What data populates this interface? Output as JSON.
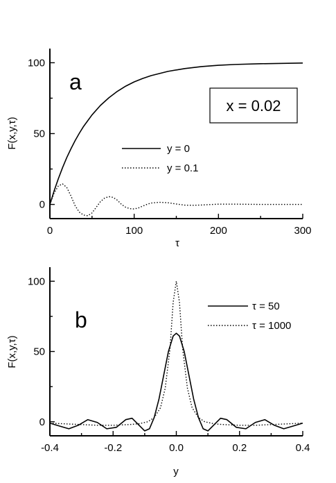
{
  "chart_data": [
    {
      "type": "line",
      "panel_label": "a",
      "xlabel": "τ",
      "ylabel": "F(x,y,τ)",
      "xlim": [
        0,
        300
      ],
      "ylim": [
        -10,
        110
      ],
      "xticks": [
        0,
        100,
        200,
        300
      ],
      "yticks": [
        0,
        50,
        100
      ],
      "grid": false,
      "legend_position": "center-right",
      "annotation": "x = 0.02",
      "series": [
        {
          "name": "y = 0",
          "style": "solid",
          "x": [
            0,
            5,
            10,
            15,
            20,
            25,
            30,
            35,
            40,
            50,
            60,
            70,
            80,
            90,
            100,
            110,
            120,
            140,
            160,
            180,
            200,
            220,
            250,
            300
          ],
          "y": [
            0,
            9.5,
            18.1,
            25.9,
            33.0,
            39.3,
            45.1,
            50.3,
            55.1,
            63.2,
            69.9,
            75.3,
            79.8,
            83.5,
            86.5,
            88.9,
            90.9,
            93.9,
            95.9,
            97.3,
            98.2,
            98.8,
            99.3,
            99.8
          ]
        },
        {
          "name": "y = 0.1",
          "style": "dotted",
          "x": [
            0,
            5,
            10,
            15,
            20,
            25,
            30,
            35,
            40,
            45,
            50,
            55,
            60,
            65,
            70,
            75,
            80,
            85,
            90,
            95,
            100,
            105,
            110,
            115,
            120,
            130,
            140,
            150,
            160,
            170,
            180,
            200,
            220,
            250,
            280,
            300
          ],
          "y": [
            0,
            8,
            13,
            14.5,
            12,
            6,
            -1,
            -5.5,
            -7.5,
            -8,
            -6,
            -2,
            2,
            4.5,
            5.5,
            5,
            3,
            0,
            -2,
            -3,
            -3.2,
            -2.5,
            -1.2,
            0,
            1,
            1.5,
            1.2,
            0.3,
            -0.5,
            -0.6,
            -0.4,
            0.2,
            0.2,
            0,
            0,
            0
          ]
        }
      ]
    },
    {
      "type": "line",
      "panel_label": "b",
      "xlabel": "y",
      "ylabel": "F(x,y,τ)",
      "xlim": [
        -0.4,
        0.4
      ],
      "ylim": [
        -10,
        110
      ],
      "xticks": [
        -0.4,
        -0.2,
        0.0,
        0.2,
        0.4
      ],
      "xtick_labels": [
        "-0.4",
        "-0.2",
        "0.0",
        "0.2",
        "0.4"
      ],
      "yticks": [
        0,
        50,
        100
      ],
      "grid": false,
      "legend_position": "top-right",
      "series": [
        {
          "name": "τ = 50",
          "style": "solid",
          "x": [
            -0.4,
            -0.37,
            -0.34,
            -0.31,
            -0.28,
            -0.25,
            -0.22,
            -0.19,
            -0.16,
            -0.14,
            -0.12,
            -0.1,
            -0.085,
            -0.07,
            -0.055,
            -0.04,
            -0.025,
            -0.01,
            0,
            0.01,
            0.025,
            0.04,
            0.055,
            0.07,
            0.085,
            0.1,
            0.12,
            0.14,
            0.16,
            0.19,
            0.22,
            0.25,
            0.28,
            0.31,
            0.34,
            0.37,
            0.4
          ],
          "y": [
            -1,
            -3,
            -5,
            -2.5,
            1.5,
            -0.5,
            -5,
            -4,
            1.5,
            2.5,
            -2,
            -6.5,
            -5,
            3,
            16,
            33,
            50,
            61,
            63,
            61,
            50,
            33,
            16,
            3,
            -5,
            -6.5,
            -2,
            2.5,
            1.5,
            -4,
            -5,
            -0.5,
            1.5,
            -2.5,
            -5,
            -3,
            -1
          ]
        },
        {
          "name": "τ = 1000",
          "style": "dotted",
          "x": [
            -0.4,
            -0.35,
            -0.3,
            -0.25,
            -0.2,
            -0.15,
            -0.12,
            -0.09,
            -0.07,
            -0.05,
            -0.035,
            -0.02,
            -0.01,
            0,
            0.01,
            0.02,
            0.035,
            0.05,
            0.07,
            0.09,
            0.12,
            0.15,
            0.2,
            0.25,
            0.3,
            0.35,
            0.4
          ],
          "y": [
            -1,
            -1.5,
            -2,
            -2.5,
            -2.5,
            -2,
            -1.5,
            0,
            3,
            10,
            24,
            52,
            85,
            100,
            85,
            52,
            24,
            10,
            3,
            0,
            -1.5,
            -2,
            -2.5,
            -2.5,
            -2,
            -1.5,
            -1
          ]
        }
      ]
    }
  ]
}
